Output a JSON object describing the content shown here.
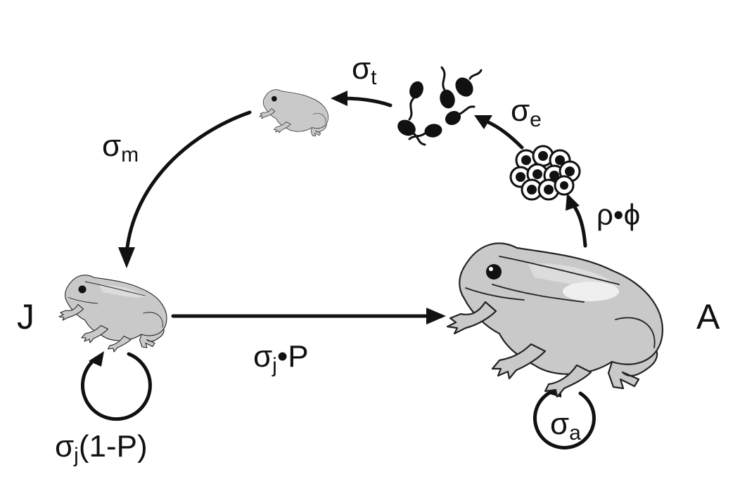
{
  "stages": {
    "juvenile": "J",
    "adult": "A"
  },
  "transitions": {
    "metamorph_to_juvenile": {
      "sym": "σ",
      "sub": "m"
    },
    "tadpole_to_metamorph": {
      "sym": "σ",
      "sub": "t"
    },
    "egg_to_tadpole": {
      "sym": "σ",
      "sub": "e"
    },
    "adult_to_egg": {
      "text": "ρ•ϕ"
    },
    "juvenile_to_adult": {
      "sym": "σ",
      "sub": "j",
      "suffix": "•P"
    },
    "juvenile_stay": {
      "sym": "σ",
      "sub": "j",
      "suffix": "(1-P)"
    },
    "adult_stay": {
      "sym": "σ",
      "sub": "a"
    }
  }
}
